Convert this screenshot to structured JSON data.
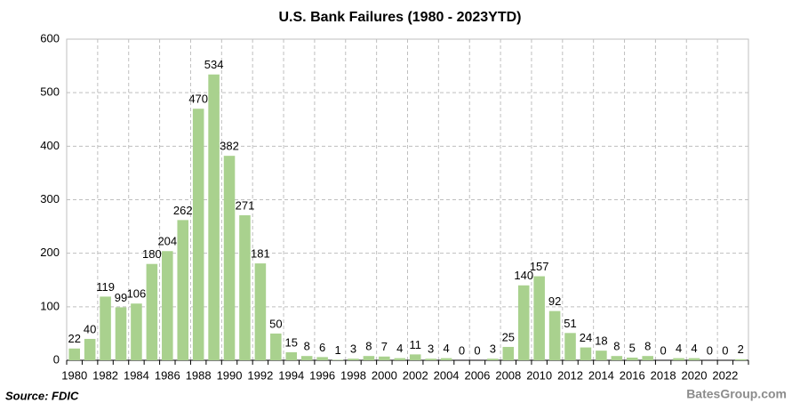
{
  "chart_data": {
    "type": "bar",
    "title": "U.S. Bank Failures (1980 - 2023YTD)",
    "categories": [
      "1980",
      null,
      "1982",
      null,
      "1984",
      null,
      "1986",
      null,
      "1988",
      null,
      "1990",
      null,
      "1992",
      null,
      "1994",
      null,
      "1996",
      null,
      "1998",
      null,
      "2000",
      null,
      "2002",
      null,
      "2004",
      null,
      "2006",
      null,
      "2008",
      null,
      "2010",
      null,
      "2012",
      null,
      "2014",
      null,
      "2016",
      null,
      "2018",
      null,
      "2020",
      null,
      "2022",
      null
    ],
    "values": [
      22,
      40,
      119,
      99,
      106,
      180,
      204,
      262,
      470,
      534,
      382,
      271,
      181,
      50,
      15,
      8,
      6,
      1,
      3,
      8,
      7,
      4,
      11,
      3,
      4,
      0,
      0,
      3,
      25,
      140,
      157,
      92,
      51,
      24,
      18,
      8,
      5,
      8,
      0,
      4,
      4,
      0,
      0,
      2
    ],
    "color": "#a9d18e",
    "ylim": [
      0,
      600
    ],
    "yticks": [
      0,
      100,
      200,
      300,
      400,
      500,
      600
    ],
    "grid": true,
    "source": "Source: FDIC",
    "credit": "BatesGroup.com"
  }
}
